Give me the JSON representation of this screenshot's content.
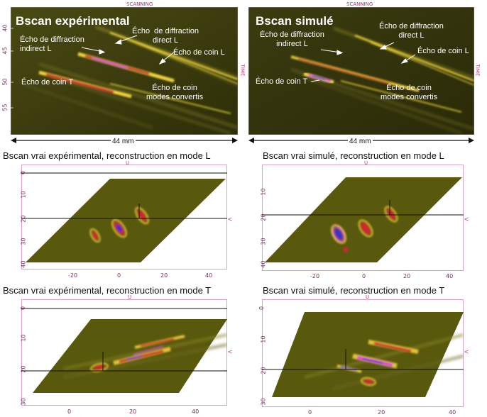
{
  "bscans": [
    {
      "id": "exp",
      "title": "Bscan expérimental",
      "header": "SCANNING",
      "side_label": "TIME",
      "width_label": "44 mm",
      "ticks": [
        "40",
        "45",
        "50",
        "55"
      ],
      "annotations": {
        "indirect": "Écho de diffraction\nindirect L",
        "direct": "Écho  de diffraction\ndirect L",
        "coinL": "Écho de coin L",
        "coinT": "Écho de coin T",
        "modes": "Écho de coin\nmodes convertis"
      }
    },
    {
      "id": "sim",
      "title": "Bscan simulé",
      "header": "SCANNING",
      "side_label": "TIME",
      "width_label": "44 mm",
      "annotations": {
        "indirect": "Écho de diffraction\nindirect L",
        "direct": "Écho de diffraction\ndirect L",
        "coinL": "Écho de coin L",
        "coinT": "Écho de coin T",
        "modes": "Écho de coin\nmodes convertis"
      }
    }
  ],
  "recons": [
    {
      "id": "exp-L",
      "title": "Bscan vrai expérimental, reconstruction en mode L",
      "axis_top": "U",
      "axis_right": "V",
      "yticks": [
        "0",
        "10",
        "20",
        "30",
        "40"
      ],
      "xticks": [
        "-20",
        "0",
        "20",
        "40"
      ]
    },
    {
      "id": "sim-L",
      "title": "Bscan vrai simulé, reconstruction en mode L",
      "axis_top": "U",
      "axis_right": "V",
      "yticks": [
        "10",
        "20",
        "30",
        "40"
      ],
      "xticks": [
        "-20",
        "0",
        "20",
        "40"
      ]
    },
    {
      "id": "exp-T",
      "title": "Bscan vrai expérimental, reconstruction en mode T",
      "axis_top": "U",
      "axis_right": "V",
      "yticks": [
        "0",
        "10",
        "20",
        "30"
      ],
      "xticks": [
        "0",
        "20",
        "40"
      ]
    },
    {
      "id": "sim-T",
      "title": "Bscan vrai simulé, reconstruction en mode T",
      "axis_top": "U",
      "axis_right": "V",
      "yticks": [
        "0",
        "10",
        "20",
        "30"
      ],
      "xticks": [
        "0",
        "20",
        "40"
      ]
    }
  ],
  "colors": {
    "bscan_bg": "#3a3a0c",
    "recon_bg": "#59590d",
    "echo_yellow": "#f2d53c",
    "echo_red": "#d1262f",
    "echo_magenta": "#e33fd5",
    "echo_blue": "#3b2fd6",
    "frame_label": "#b0307a"
  }
}
